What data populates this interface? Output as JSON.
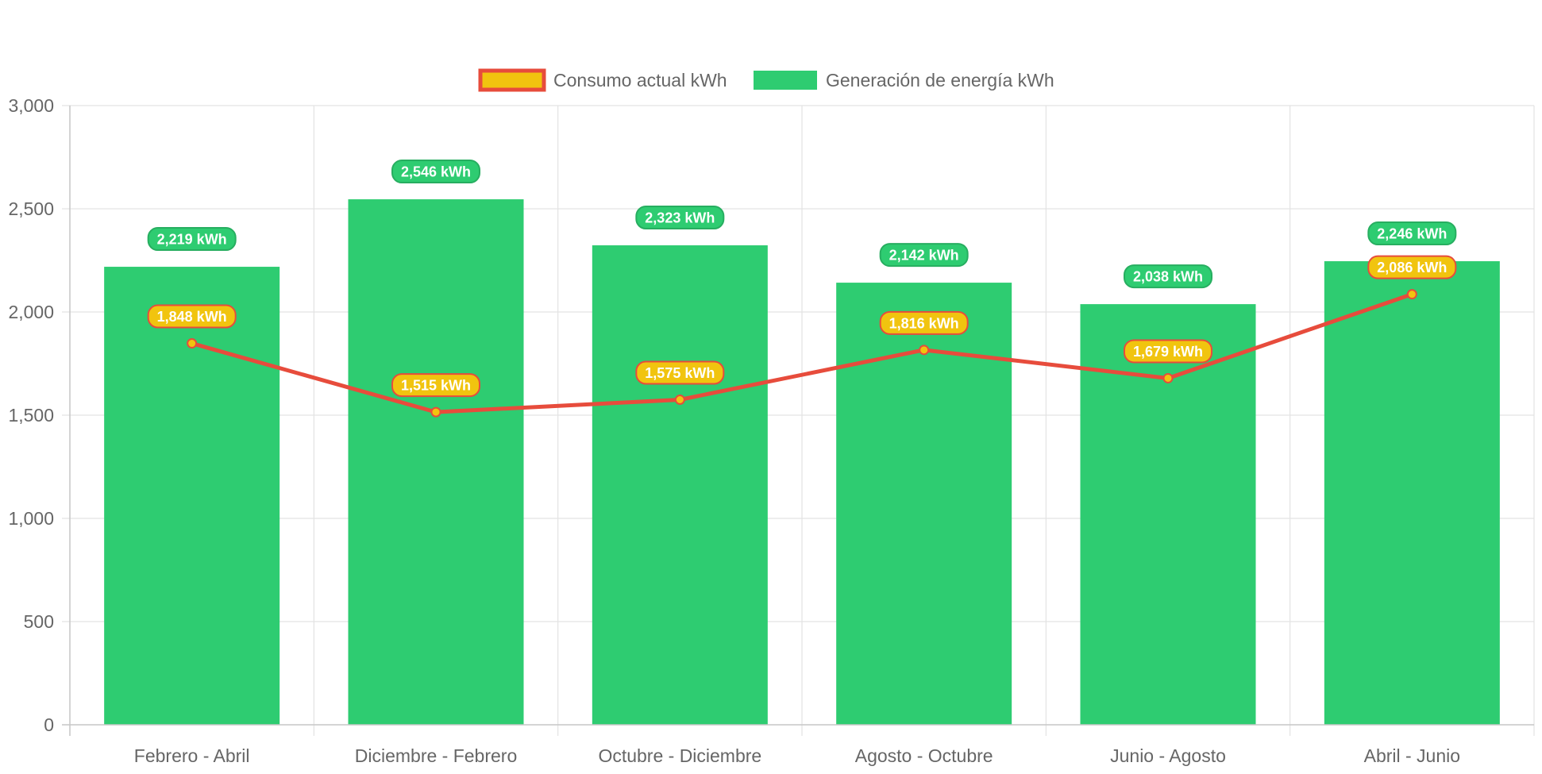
{
  "chart_data": {
    "type": "bar",
    "categories": [
      "Febrero - Abril",
      "Diciembre - Febrero",
      "Octubre - Diciembre",
      "Agosto - Octubre",
      "Junio - Agosto",
      "Abril - Junio"
    ],
    "series": [
      {
        "name": "Consumo actual kWh",
        "type": "line",
        "values": [
          1848,
          1515,
          1575,
          1816,
          1679,
          2086
        ],
        "labels": [
          "1,848 kWh",
          "1,515 kWh",
          "1,575 kWh",
          "1,816 kWh",
          "1,679 kWh",
          "2,086 kWh"
        ],
        "line_color": "#e74c3c",
        "fill_color": "#f1c40f"
      },
      {
        "name": "Generación de energía kWh",
        "type": "bar",
        "values": [
          2219,
          2546,
          2323,
          2142,
          2038,
          2246
        ],
        "labels": [
          "2,219 kWh",
          "2,546 kWh",
          "2,323 kWh",
          "2,142 kWh",
          "2,038 kWh",
          "2,246 kWh"
        ],
        "color": "#2ecc71",
        "label_border": "#27ae60"
      }
    ],
    "ylim": [
      0,
      3000
    ],
    "yticks": [
      "0",
      "500",
      "1,000",
      "1,500",
      "2,000",
      "2,500",
      "3,000"
    ],
    "ytick_values": [
      0,
      500,
      1000,
      1500,
      2000,
      2500,
      3000
    ],
    "grid": true,
    "legend_position": "top",
    "xlabel": "",
    "ylabel": ""
  }
}
